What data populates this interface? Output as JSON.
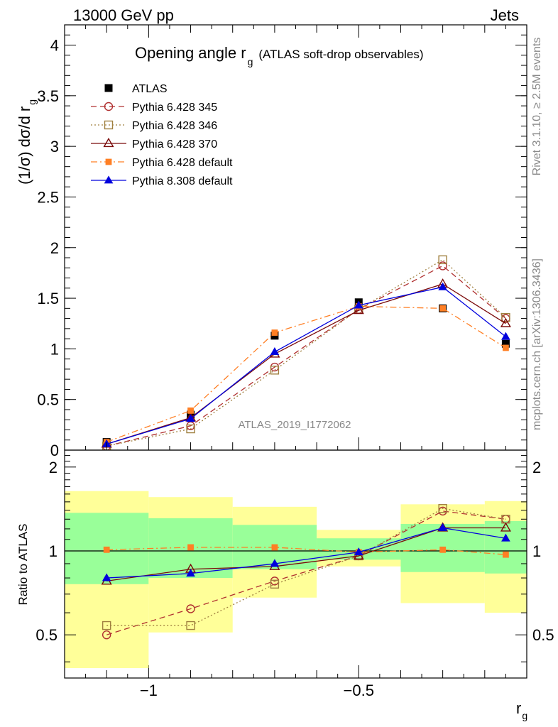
{
  "header": {
    "left": "13000 GeV pp",
    "right": "Jets"
  },
  "title": {
    "main": "Opening angle r",
    "sub": "g",
    "rest": "(ATLAS soft-drop observables)"
  },
  "side_labels": {
    "rivet": "Rivet 3.1.10, ≥ 2.5M events",
    "mcplots": "mcplots.cern.ch [arXiv:1306.3436]"
  },
  "analysis_id": "ATLAS_2019_I1772062",
  "axis_labels": {
    "upper_y_main": "(1/σ) dσ/d r",
    "upper_y_sub": "g",
    "ratio_y": "Ratio to ATLAS",
    "x_main": "r",
    "x_sub": "g"
  },
  "chart_data": [
    {
      "type": "scatter",
      "panel": "main",
      "x_scale": "log10",
      "xlim": [
        -1.2,
        -0.1
      ],
      "ylim": [
        0,
        4.2
      ],
      "x_centers": [
        -1.1,
        -0.9,
        -0.7,
        -0.5,
        -0.3,
        -0.15
      ],
      "y_ticks": [
        0,
        0.5,
        1,
        1.5,
        2,
        2.5,
        3,
        3.5,
        4
      ],
      "y_tick_labels": [
        "0",
        "0.5",
        "1",
        "1.5",
        "2",
        "2.5",
        "3",
        "3.5",
        "4"
      ],
      "series": [
        {
          "name": "ATLAS",
          "color": "#000000",
          "marker": "filled-square",
          "dash": "none",
          "values": [
            0.08,
            0.35,
            1.13,
            1.46,
            1.4,
            1.05
          ]
        },
        {
          "name": "Pythia 6.428 345",
          "color": "#b03030",
          "marker": "open-circle",
          "dash": "8,5",
          "values": [
            0.04,
            0.24,
            0.82,
            1.39,
            1.82,
            1.3
          ]
        },
        {
          "name": "Pythia 6.428 346",
          "color": "#a08040",
          "marker": "open-square",
          "dash": "2,3",
          "values": [
            0.04,
            0.21,
            0.79,
            1.39,
            1.88,
            1.31
          ]
        },
        {
          "name": "Pythia 6.428 370",
          "color": "#7a0a0a",
          "marker": "open-triangle",
          "dash": "none",
          "values": [
            0.06,
            0.32,
            0.95,
            1.38,
            1.64,
            1.25
          ]
        },
        {
          "name": "Pythia 6.428 default",
          "color": "#ff7f24",
          "marker": "filled-square-small",
          "dash": "9,4,2,4",
          "values": [
            0.08,
            0.39,
            1.16,
            1.42,
            1.4,
            1.01
          ]
        },
        {
          "name": "Pythia 8.308 default",
          "color": "#0000dd",
          "marker": "filled-triangle",
          "dash": "none",
          "values": [
            0.06,
            0.31,
            0.97,
            1.43,
            1.61,
            1.12
          ]
        }
      ]
    },
    {
      "type": "scatter",
      "panel": "ratio",
      "x_scale": "log10",
      "xlim": [
        -1.2,
        -0.1
      ],
      "ylim": [
        0.35,
        2.3
      ],
      "x_ticks": [
        -1,
        -0.5
      ],
      "x_tick_labels": [
        "−1",
        "−0.5"
      ],
      "y_ticks": [
        0.5,
        1,
        2
      ],
      "y_tick_labels": [
        "0.5",
        "1",
        "2"
      ],
      "bin_edges": [
        -1.2,
        -1.0,
        -0.8,
        -0.6,
        -0.4,
        -0.2,
        -0.1
      ],
      "uncertainty_bands": {
        "outer_color": "#ffff99",
        "inner_color": "#99ff99",
        "outer_low": [
          0.38,
          0.51,
          0.68,
          0.88,
          0.65,
          0.6
        ],
        "outer_high": [
          1.64,
          1.56,
          1.44,
          1.19,
          1.47,
          1.51
        ],
        "inner_low": [
          0.76,
          0.8,
          0.86,
          0.93,
          0.84,
          0.83
        ],
        "inner_high": [
          1.37,
          1.31,
          1.24,
          1.11,
          1.25,
          1.28
        ]
      },
      "series": [
        {
          "name": "Pythia 6.428 345",
          "values": [
            0.5,
            0.62,
            0.78,
            0.96,
            1.39,
            1.3
          ]
        },
        {
          "name": "Pythia 6.428 346",
          "values": [
            0.54,
            0.54,
            0.76,
            0.96,
            1.42,
            1.3
          ]
        },
        {
          "name": "Pythia 6.428 370",
          "values": [
            0.78,
            0.86,
            0.88,
            0.96,
            1.21,
            1.21
          ]
        },
        {
          "name": "Pythia 6.428 default",
          "values": [
            1.01,
            1.03,
            1.03,
            0.99,
            1.01,
            0.97
          ]
        },
        {
          "name": "Pythia 8.308 default",
          "values": [
            0.8,
            0.83,
            0.9,
            0.99,
            1.21,
            1.11
          ]
        }
      ]
    }
  ]
}
